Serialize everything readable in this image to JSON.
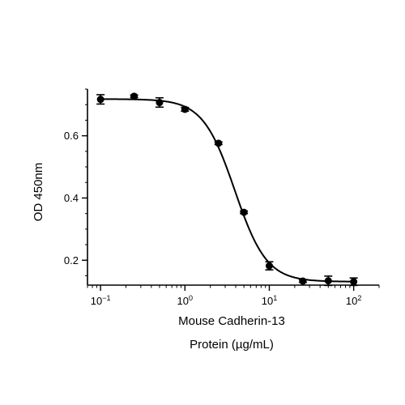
{
  "chart_data": {
    "type": "scatter",
    "title": "",
    "xlabel_line1": "Mouse Cadherin-13",
    "xlabel_line2": "Protein (µg/mL)",
    "ylabel": "OD 450nm",
    "xscale": "log",
    "xlim": [
      0.07,
      200
    ],
    "ylim": [
      0.12,
      0.75
    ],
    "grid": false,
    "legend": "none",
    "x_ticks": [
      {
        "value": 0.1,
        "base": "10",
        "exp": "−1"
      },
      {
        "value": 1,
        "base": "10",
        "exp": "0"
      },
      {
        "value": 10,
        "base": "10",
        "exp": "1"
      },
      {
        "value": 100,
        "base": "10",
        "exp": "2"
      }
    ],
    "y_ticks": [
      {
        "value": 0.2,
        "label": "0.2"
      },
      {
        "value": 0.4,
        "label": "0.4"
      },
      {
        "value": 0.6,
        "label": "0.6"
      }
    ],
    "y_minor_step": 0.05,
    "series": [
      {
        "x": [
          0.1,
          0.25,
          0.5,
          1,
          2.5,
          5,
          10,
          25,
          50,
          100
        ],
        "y": [
          0.717,
          0.727,
          0.707,
          0.685,
          0.576,
          0.354,
          0.182,
          0.133,
          0.134,
          0.131
        ],
        "err": [
          0.015,
          0.004,
          0.015,
          0.006,
          0.004,
          0.004,
          0.013,
          0.004,
          0.015,
          0.012
        ]
      }
    ],
    "fit_curve": {
      "model": "4PL",
      "top": 0.718,
      "bottom": 0.131,
      "ec50": 3.9,
      "hill": 2.3
    },
    "colors": {
      "points": "#000000",
      "curve": "#000000",
      "axes": "#000000"
    }
  }
}
